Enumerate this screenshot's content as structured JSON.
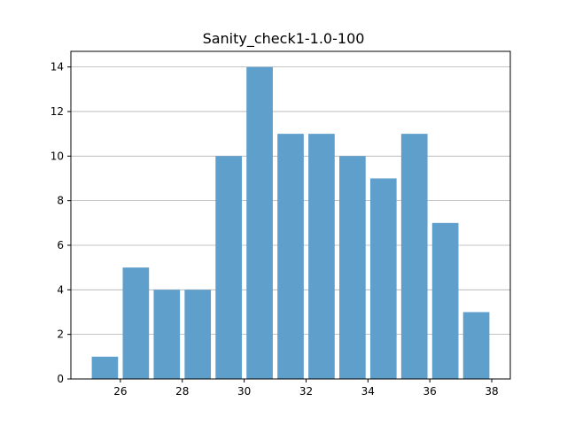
{
  "chart_data": {
    "type": "bar",
    "title": "Sanity_check1-1.0-100",
    "xlabel": "",
    "ylabel": "",
    "x": [
      25.5,
      26.5,
      27.5,
      28.5,
      29.5,
      30.5,
      31.5,
      32.5,
      33.5,
      34.5,
      35.5,
      36.5,
      37.5
    ],
    "values": [
      1,
      5,
      4,
      4,
      10,
      14,
      11,
      11,
      10,
      9,
      11,
      7,
      3
    ],
    "bar_width": 0.85,
    "xlim": [
      24.4,
      38.6
    ],
    "ylim": [
      0,
      14.7
    ],
    "xticks": [
      26,
      28,
      30,
      32,
      34,
      36,
      38
    ],
    "yticks": [
      0,
      2,
      4,
      6,
      8,
      10,
      12,
      14
    ],
    "grid": "y-only",
    "bar_color": "#5f9fcc"
  }
}
